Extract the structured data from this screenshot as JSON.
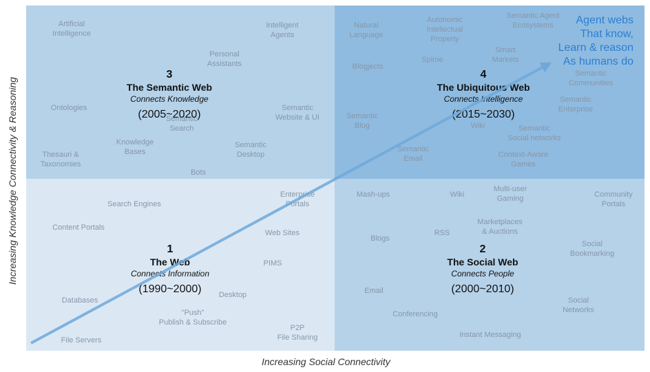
{
  "axes": {
    "y_label": "Increasing Knowledge Connectivity & Reasoning",
    "x_label": "Increasing Social Connectivity"
  },
  "vision": "Agent webs\nThat know,\nLearn & reason\nAs humans do",
  "quadrants": {
    "q3": {
      "number": "3",
      "name": "The Semantic Web",
      "subtitle": "Connects Knowledge",
      "years": "(2005~2020)",
      "terms": [
        "Artificial\nIntelligence",
        "Intelligent\nAgents",
        "Personal\nAssistants",
        "Ontologies",
        "Semantic\nWebsite & UI",
        "Semantic\nSearch",
        "Knowledge\nBases",
        "Semantic\nDesktop",
        "Thesauri &\nTaxonomies",
        "Bots"
      ]
    },
    "q4": {
      "number": "4",
      "name": "The Ubiquitous Web",
      "subtitle": "Connects Intelligence",
      "years": "(2015~2030)",
      "terms": [
        "Natural\nLanguage",
        "Autonomic\nIntellectual\nProperty",
        "Semantic Agent\nEcosystems",
        "Smart\nMarkets",
        "Spime",
        "Blogjects",
        "Semantic\nCommunities",
        "Semantic\nEnterprise",
        "Semantic\nBlog",
        "Wiki",
        "Semantic\nSocial networks",
        "Semantic\nEmail",
        "Context-Aware\nGames"
      ]
    },
    "q1": {
      "number": "1",
      "name": "The Web",
      "subtitle": "Connects Information",
      "years": "(1990~2000)",
      "terms": [
        "Search Engines",
        "Enterprise\nPortals",
        "Content Portals",
        "Web Sites",
        "PIMS",
        "Databases",
        "Desktop",
        "\"Push\"\nPublish & Subscribe",
        "File Servers",
        "P2P\nFile Sharing"
      ]
    },
    "q2": {
      "number": "2",
      "name": "The Social Web",
      "subtitle": "Connects People",
      "years": "(2000~2010)",
      "terms": [
        "Mash-ups",
        "Wiki",
        "Multi-user\nGaming",
        "Community\nPortals",
        "Marketplaces\n& Auctions",
        "Blogs",
        "RSS",
        "Social\nBookmarking",
        "Email",
        "Conferencing",
        "Social\nNetworks",
        "Instant Messaging"
      ]
    }
  },
  "colors": {
    "q1": "#dbe8f4",
    "q2": "#b5d2e9",
    "q3": "#b5d2e9",
    "q4": "#8fbbe0",
    "arrow": "#6ea8da",
    "vision": "#2b7fd1"
  }
}
